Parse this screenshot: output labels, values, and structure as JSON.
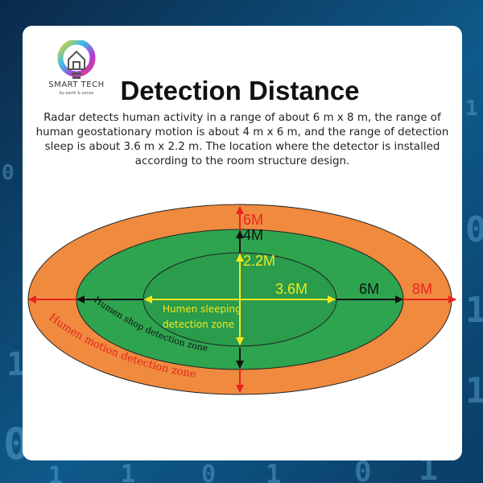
{
  "logo": {
    "name": "SMART TECH",
    "tagline": "by earth & sense"
  },
  "title": "Detection Distance",
  "description": "Radar detects human activity in a range of about 6 m x 8 m, the range of human geostationary motion is about 4 m x 6 m,  and the range of detection sleep is about 3.6 m x 2.2 m. The location where the detector is installed according to the room structure design.",
  "labels": {
    "outer_vertical": "6M",
    "middle_vertical": "4M",
    "inner_vertical": "2.2M",
    "inner_horizontal": "3.6M",
    "middle_horizontal": "6M",
    "outer_horizontal": "8M",
    "sleep_zone_line1": "Humen sleeping",
    "sleep_zone_line2": "detection zone",
    "shop_zone": "Humen shop detection zone",
    "motion_zone": "Humen motion detection zone"
  },
  "colors": {
    "outer_zone": "#ef8a3f",
    "middle_zone": "#2ea44f",
    "inner_zone": "#2a9c4b",
    "red": "#e8231f",
    "yellow": "#f6e61c",
    "black": "#111111"
  },
  "background_digits": [
    "1",
    "0",
    "1",
    "1",
    "0",
    "1",
    "0",
    "1",
    "0",
    "1",
    "1",
    "0",
    "1"
  ]
}
